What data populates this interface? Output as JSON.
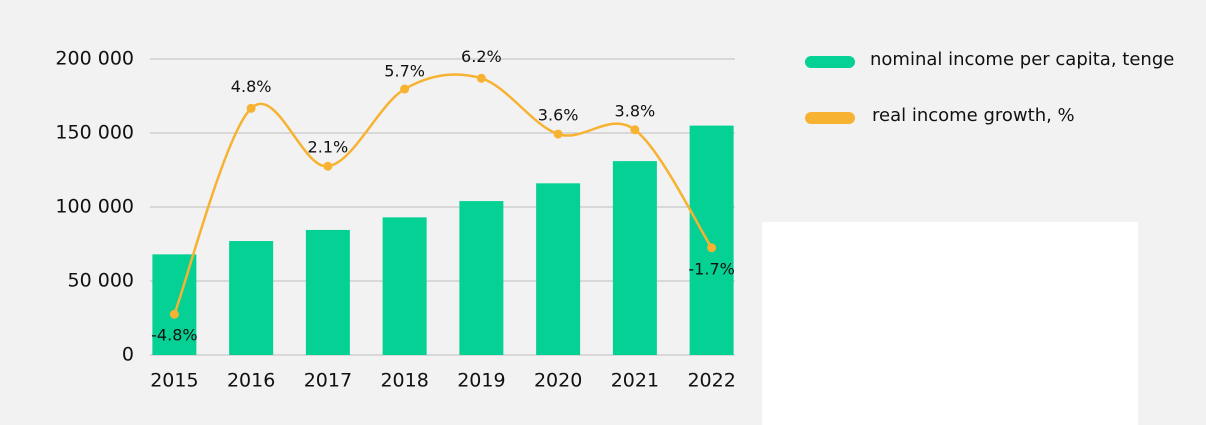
{
  "chart_data": {
    "type": "bar_line",
    "categories": [
      "2015",
      "2016",
      "2017",
      "2018",
      "2019",
      "2020",
      "2021",
      "2022"
    ],
    "series": [
      {
        "name": "nominal income per capita, tenge",
        "color": "#06d194",
        "type": "bar",
        "values": [
          68000,
          77000,
          84500,
          93000,
          104000,
          116000,
          131000,
          155000
        ]
      },
      {
        "name": "real income growth, %",
        "color": "#f7b232",
        "type": "line",
        "axis": "y2",
        "values": [
          -4.8,
          4.8,
          2.1,
          5.7,
          6.2,
          3.6,
          3.8,
          -1.7
        ],
        "value_labels": [
          "-4.8%",
          "4.8%",
          "2.1%",
          "5.7%",
          "6.2%",
          "3.6%",
          "3.8%",
          "-1.7%"
        ]
      }
    ],
    "ylim": [
      0,
      200000
    ],
    "yticks": [
      {
        "value": 0,
        "label": "0"
      },
      {
        "value": 50000,
        "label": "50 000"
      },
      {
        "value": 100000,
        "label": "100 000"
      },
      {
        "value": 150000,
        "label": "150 000"
      },
      {
        "value": 200000,
        "label": "200 000"
      }
    ],
    "y2lim": [
      -6.7,
      7.1
    ],
    "grid": true,
    "legend": "top-right"
  }
}
